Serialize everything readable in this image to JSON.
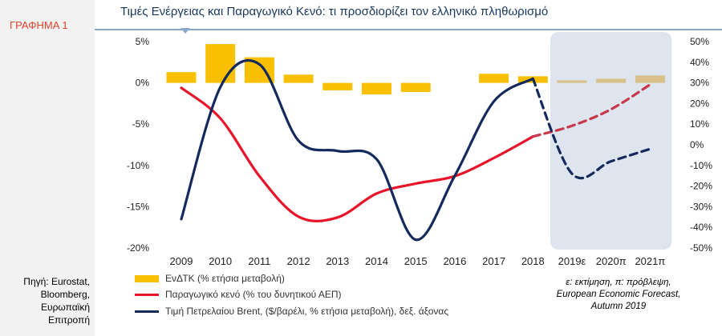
{
  "figure_label": "ΓΡΑΦΗΜΑ 1",
  "title": "Τιμές Ενέργειας και Παραγωγικό Κενό: τι προσδιορίζει τον ελληνικό πληθωρισμό",
  "source_lines": [
    "Πηγή: Eurostat,",
    "Bloomberg,",
    "Ευρωπαϊκή",
    "Επιτροπή"
  ],
  "note_lines": [
    "ε: εκτίμηση, π: πρόβλεψη,",
    "European Economic Forecast,",
    "Autumn 2019"
  ],
  "colors": {
    "bars": "#f8c000",
    "bars_forecast": "#d8c089",
    "output_gap": "#e8152a",
    "output_gap_forecast": "#c8384a",
    "brent": "#142a5c",
    "forecast_bg": "#dfe5ee",
    "axis_text": "#222222"
  },
  "chart_data": {
    "type": "bar+line",
    "title": "Τιμές Ενέργειας και Παραγωγικό Κενό: τι προσδιορίζει τον ελληνικό πληθωρισμό",
    "categories": [
      "2009",
      "2010",
      "2011",
      "2012",
      "2013",
      "2014",
      "2015",
      "2016",
      "2017",
      "2018",
      "2019ε",
      "2020π",
      "2021π"
    ],
    "forecast_from_index": 10,
    "y_left": {
      "ylim": [
        -20,
        5
      ],
      "ticks": [
        5,
        0,
        -5,
        -10,
        -15,
        -20
      ],
      "tick_labels": [
        "5%",
        "0%",
        "-5%",
        "-10%",
        "-15%",
        "-20%"
      ]
    },
    "y_right": {
      "ylim": [
        -50,
        50
      ],
      "ticks": [
        50,
        40,
        30,
        20,
        10,
        0,
        -10,
        -20,
        -30,
        -40,
        -50
      ],
      "tick_labels": [
        "50%",
        "40%",
        "30%",
        "20%",
        "10%",
        "0%",
        "-10%",
        "-20%",
        "-30%",
        "-40%",
        "-50%"
      ]
    },
    "grid": false,
    "legend_position": "bottom-left",
    "series": [
      {
        "name": "ΕνΔΤΚ  (% ετήσια μεταβολή)",
        "type": "bar",
        "axis": "left",
        "values": [
          1.3,
          4.7,
          3.1,
          1.0,
          -0.9,
          -1.4,
          -1.1,
          0.0,
          1.1,
          0.8,
          0.3,
          0.5,
          0.9
        ]
      },
      {
        "name": "Παραγωγικό κενό (% του δυνητικού ΑΕΠ)",
        "type": "line",
        "axis": "left",
        "values": [
          -0.6,
          -4.3,
          -11.3,
          -16.2,
          -16.3,
          -13.4,
          -12.2,
          -11.3,
          -9.1,
          -6.5,
          -5.2,
          -3.2,
          -0.2
        ]
      },
      {
        "name": "Τιμή Πετρελαίου Brent, ($/βαρέλι, % ετήσια μεταβολή), δεξ. άξονας",
        "type": "line",
        "axis": "right",
        "values": [
          -36,
          28,
          39,
          2,
          -3,
          -7,
          -46,
          -15,
          21,
          32,
          -14,
          -8,
          -2
        ]
      }
    ]
  }
}
